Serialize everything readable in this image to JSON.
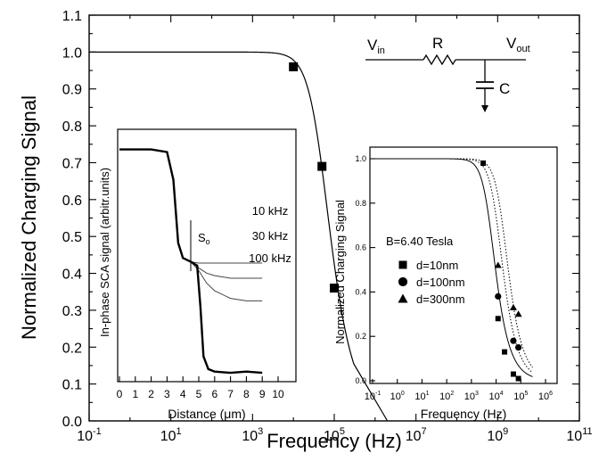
{
  "chart_data": [
    {
      "type": "line",
      "ylabel": "Normalized Charging Signal",
      "xlabel": "Frequency (Hz)",
      "x_scale": "log",
      "xlim": [
        0.1,
        100000000000
      ],
      "ylim": [
        0.0,
        1.1
      ],
      "x_ticks": [
        {
          "value": 0.1,
          "base": "10",
          "exp": "-1"
        },
        {
          "value": 10,
          "base": "10",
          "exp": "1"
        },
        {
          "value": 1000,
          "base": "10",
          "exp": "3"
        },
        {
          "value": 100000,
          "base": "10",
          "exp": "5"
        },
        {
          "value": 10000000,
          "base": "10",
          "exp": "7"
        },
        {
          "value": 1000000000,
          "base": "10",
          "exp": "9"
        },
        {
          "value": 100000000000,
          "base": "10",
          "exp": "11"
        }
      ],
      "y_ticks": [
        "0.0",
        "0.1",
        "0.2",
        "0.3",
        "0.4",
        "0.5",
        "0.6",
        "0.7",
        "0.8",
        "0.9",
        "1.0",
        "1.1"
      ],
      "curve": {
        "type": "RC low-pass fit",
        "f_c": 47000
      },
      "points": [
        {
          "x": 10000,
          "y": 0.96
        },
        {
          "x": 50000,
          "y": 0.69
        },
        {
          "x": 100000,
          "y": 0.36
        }
      ],
      "circuit": {
        "vin": "V",
        "vin_sub": "in",
        "r": "R",
        "vout": "V",
        "vout_sub": "out",
        "c": "C"
      }
    },
    {
      "type": "line",
      "position": "inset-left",
      "ylabel": "In-phase SCA signal (arbitr.units)",
      "xlabel": "Distance (μm)",
      "xlim": [
        0,
        10
      ],
      "x_ticks": [
        "0",
        "1",
        "2",
        "3",
        "4",
        "5",
        "6",
        "7",
        "8",
        "9",
        "10"
      ],
      "series": [
        {
          "name": "10 kHz",
          "x": [
            0,
            1,
            2,
            3,
            3.4,
            3.7,
            4,
            4.5,
            5,
            5.5,
            6,
            7,
            8,
            9
          ],
          "y": [
            0.92,
            0.92,
            0.92,
            0.91,
            0.8,
            0.55,
            0.49,
            0.475,
            0.47,
            0.47,
            0.47,
            0.47,
            0.47,
            0.47
          ]
        },
        {
          "name": "30 kHz",
          "x": [
            0,
            1,
            2,
            3,
            3.4,
            3.7,
            4,
            4.5,
            5,
            5.5,
            6,
            7,
            8,
            9
          ],
          "y": [
            0.92,
            0.92,
            0.92,
            0.91,
            0.8,
            0.55,
            0.49,
            0.475,
            0.45,
            0.43,
            0.42,
            0.41,
            0.41,
            0.41
          ]
        },
        {
          "name": "100 kHz",
          "x": [
            0,
            1,
            2,
            3,
            3.4,
            3.7,
            4,
            4.5,
            5,
            5.5,
            6,
            7,
            8,
            9
          ],
          "y": [
            0.92,
            0.92,
            0.92,
            0.91,
            0.8,
            0.55,
            0.49,
            0.475,
            0.44,
            0.39,
            0.36,
            0.33,
            0.32,
            0.32
          ]
        },
        {
          "name": "",
          "x": [
            0,
            1,
            2,
            3,
            3.4,
            3.7,
            4,
            4.5,
            4.9,
            5.1,
            5.3,
            5.6,
            6,
            7,
            8,
            9
          ],
          "y": [
            0.92,
            0.92,
            0.92,
            0.91,
            0.8,
            0.55,
            0.49,
            0.475,
            0.46,
            0.3,
            0.1,
            0.05,
            0.04,
            0.035,
            0.04,
            0.035
          ]
        }
      ],
      "annotation": {
        "text": "S",
        "sub": "o",
        "x": 3.5
      }
    },
    {
      "type": "scatter",
      "position": "inset-right",
      "ylabel": "Normalized Charging Signal",
      "xlabel": "Frequency (Hz)",
      "x_scale": "log",
      "xlim": [
        0.1,
        1000000
      ],
      "ylim": [
        0.0,
        1.0
      ],
      "y_ticks": [
        "0.0",
        "0.2",
        "0.4",
        "0.6",
        "0.8",
        "1.0"
      ],
      "x_ticks": [
        {
          "value": 0.1,
          "base": "10",
          "exp": "-1"
        },
        {
          "value": 1,
          "base": "10",
          "exp": "0"
        },
        {
          "value": 10,
          "base": "10",
          "exp": "1"
        },
        {
          "value": 100,
          "base": "10",
          "exp": "2"
        },
        {
          "value": 1000,
          "base": "10",
          "exp": "3"
        },
        {
          "value": 10000,
          "base": "10",
          "exp": "4"
        },
        {
          "value": 100000,
          "base": "10",
          "exp": "5"
        },
        {
          "value": 1000000,
          "base": "10",
          "exp": "6"
        }
      ],
      "annotation": "B=6.40 Tesla",
      "series": [
        {
          "name": "d=10nm",
          "marker": "square",
          "x": [
            3000,
            12000,
            22000,
            50000,
            80000
          ],
          "y": [
            0.98,
            0.28,
            0.13,
            0.03,
            0.01
          ],
          "fit_fc": 5500,
          "fit_style": "solid"
        },
        {
          "name": "d=100nm",
          "marker": "circle",
          "x": [
            12000,
            50000,
            80000
          ],
          "y": [
            0.38,
            0.18,
            0.15
          ],
          "fit_fc": 11000,
          "fit_style": "dotted"
        },
        {
          "name": "d=300nm",
          "marker": "triangle",
          "x": [
            12000,
            50000,
            80000
          ],
          "y": [
            0.52,
            0.33,
            0.3
          ],
          "fit_fc": 18000,
          "fit_style": "dotted"
        }
      ]
    }
  ]
}
